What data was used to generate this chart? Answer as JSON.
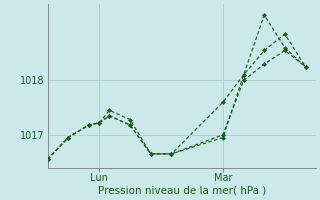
{
  "xlabel": "Pression niveau de la mer( hPa )",
  "background_color": "#cce8ea",
  "grid_color": "#aacdd0",
  "line_color": "#1a5c1a",
  "ylim": [
    1016.4,
    1019.4
  ],
  "xlim": [
    0,
    13
  ],
  "yticks": [
    1017,
    1018
  ],
  "lun_x": 2.5,
  "mar_x": 8.5,
  "series1_x": [
    0,
    1,
    2,
    2.5,
    3,
    4,
    5,
    6,
    8.5,
    9.5,
    10.5,
    11.5,
    12.5
  ],
  "series1_y": [
    1016.55,
    1016.95,
    1017.18,
    1017.22,
    1017.35,
    1017.18,
    1016.65,
    1016.65,
    1016.95,
    1018.1,
    1019.2,
    1018.6,
    1018.25
  ],
  "series2_x": [
    0,
    1,
    2,
    2.5,
    3,
    4,
    5,
    6,
    8.5,
    9.5,
    10.5,
    11.5,
    12.5
  ],
  "series2_y": [
    1016.55,
    1016.95,
    1017.18,
    1017.22,
    1017.35,
    1017.18,
    1016.65,
    1016.65,
    1017.6,
    1018.1,
    1018.55,
    1018.85,
    1018.25
  ],
  "series3_x": [
    0,
    1,
    2,
    2.5,
    3,
    4,
    5,
    6,
    8.5,
    9.5,
    10.5,
    11.5,
    12.5
  ],
  "series3_y": [
    1016.55,
    1016.95,
    1017.18,
    1017.22,
    1017.45,
    1017.28,
    1016.65,
    1016.65,
    1017.0,
    1018.0,
    1018.3,
    1018.55,
    1018.25
  ]
}
